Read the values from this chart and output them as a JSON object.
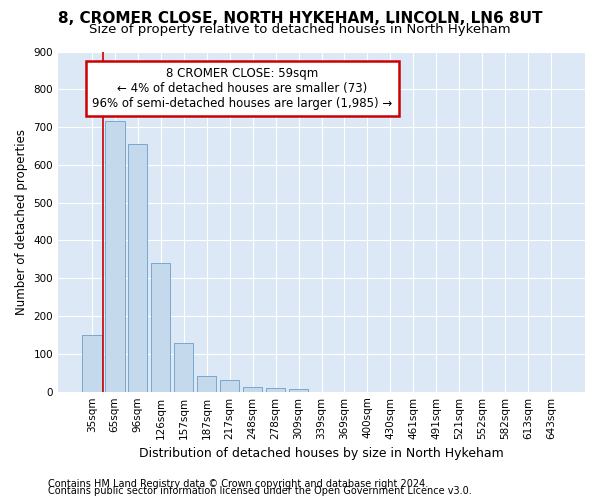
{
  "title1": "8, CROMER CLOSE, NORTH HYKEHAM, LINCOLN, LN6 8UT",
  "title2": "Size of property relative to detached houses in North Hykeham",
  "xlabel": "Distribution of detached houses by size in North Hykeham",
  "ylabel": "Number of detached properties",
  "categories": [
    "35sqm",
    "65sqm",
    "96sqm",
    "126sqm",
    "157sqm",
    "187sqm",
    "217sqm",
    "248sqm",
    "278sqm",
    "309sqm",
    "339sqm",
    "369sqm",
    "400sqm",
    "430sqm",
    "461sqm",
    "491sqm",
    "521sqm",
    "552sqm",
    "582sqm",
    "613sqm",
    "643sqm"
  ],
  "values": [
    150,
    715,
    655,
    340,
    128,
    42,
    30,
    13,
    10,
    8,
    0,
    0,
    0,
    0,
    0,
    0,
    0,
    0,
    0,
    0,
    0
  ],
  "bar_color": "#c5d9ed",
  "bar_edge_color": "#6b9ec8",
  "vline_color": "#cc0000",
  "annotation_text": "8 CROMER CLOSE: 59sqm\n← 4% of detached houses are smaller (73)\n96% of semi-detached houses are larger (1,985) →",
  "annotation_box_color": "white",
  "annotation_box_edge_color": "#cc0000",
  "ylim": [
    0,
    900
  ],
  "yticks": [
    0,
    100,
    200,
    300,
    400,
    500,
    600,
    700,
    800,
    900
  ],
  "footnote1": "Contains HM Land Registry data © Crown copyright and database right 2024.",
  "footnote2": "Contains public sector information licensed under the Open Government Licence v3.0.",
  "fig_bg_color": "#ffffff",
  "plot_bg_color": "#dce8f5",
  "title1_fontsize": 11,
  "title2_fontsize": 9.5,
  "xlabel_fontsize": 9,
  "ylabel_fontsize": 8.5,
  "tick_fontsize": 7.5,
  "annotation_fontsize": 8.5,
  "footnote_fontsize": 7
}
